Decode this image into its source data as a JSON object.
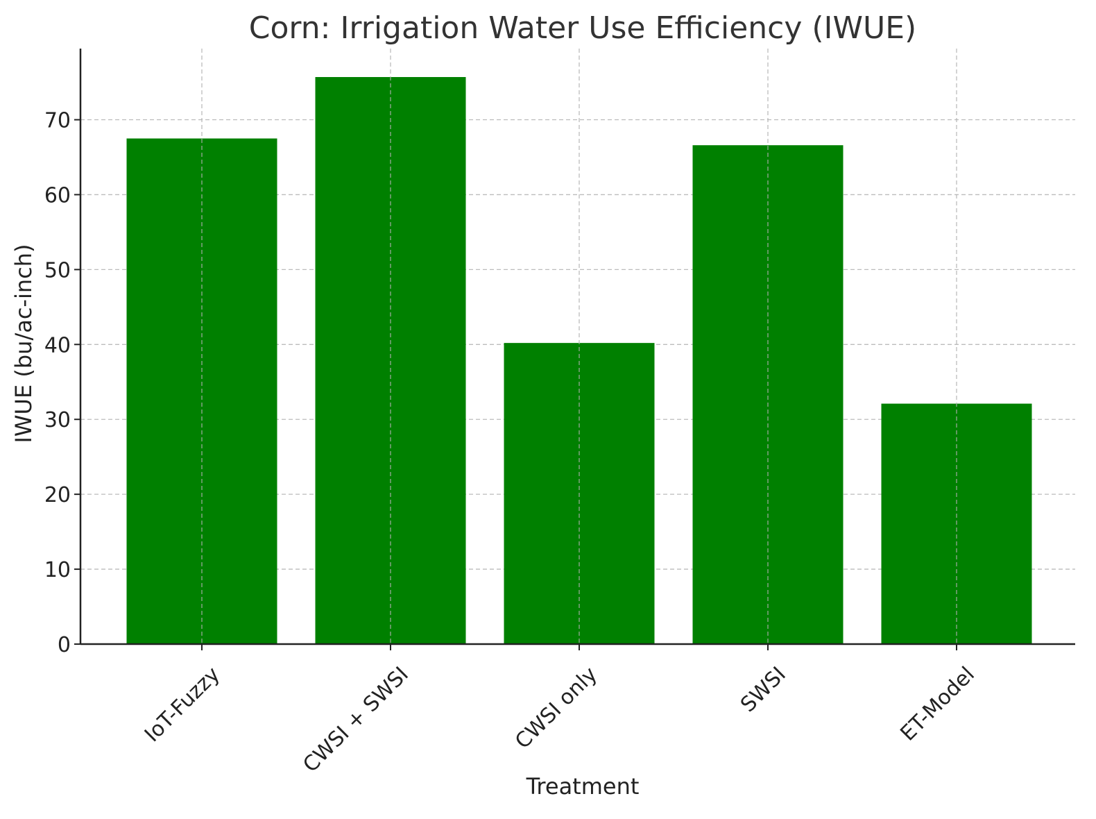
{
  "chart_data": {
    "type": "bar",
    "title": "Corn: Irrigation Water Use Efficiency (IWUE)",
    "xlabel": "Treatment",
    "ylabel": "IWUE (bu/ac-inch)",
    "categories": [
      "IoT-Fuzzy",
      "CWSI + SWSI",
      "CWSI only",
      "SWSI",
      "ET-Model"
    ],
    "values": [
      67.5,
      75.7,
      40.2,
      66.6,
      32.1
    ],
    "ylim": [
      0,
      79.5
    ],
    "yticks": [
      0,
      10,
      20,
      30,
      40,
      50,
      60,
      70
    ],
    "grid": true,
    "bar_color": "#008000"
  }
}
